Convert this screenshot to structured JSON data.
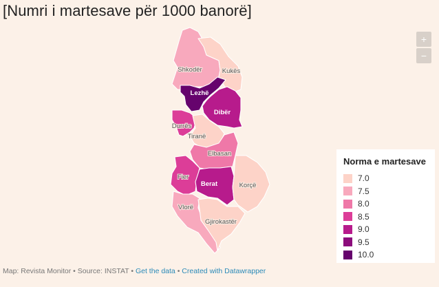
{
  "title": "[Numri i martesave për 1000 banorë]",
  "controls": {
    "zoom_in": "+",
    "zoom_out": "−"
  },
  "legend": {
    "title": "Norma e martesave",
    "items": [
      {
        "value": "7.0",
        "color": "#fdd3c8"
      },
      {
        "value": "7.5",
        "color": "#f8a9bd"
      },
      {
        "value": "8.0",
        "color": "#ef78a8"
      },
      {
        "value": "8.5",
        "color": "#dc3d98"
      },
      {
        "value": "9.0",
        "color": "#b71b8c"
      },
      {
        "value": "9.5",
        "color": "#8c0c7c"
      },
      {
        "value": "10.0",
        "color": "#66036d"
      }
    ]
  },
  "regions": [
    {
      "name": "Shkodër",
      "rate": 7.5
    },
    {
      "name": "Kukës",
      "rate": 7.0
    },
    {
      "name": "Lezhë",
      "rate": 10.0
    },
    {
      "name": "Dibër",
      "rate": 9.0
    },
    {
      "name": "Durrës",
      "rate": 8.5
    },
    {
      "name": "Tiranë",
      "rate": 7.0
    },
    {
      "name": "Elbasan",
      "rate": 8.0
    },
    {
      "name": "Fier",
      "rate": 8.5
    },
    {
      "name": "Berat",
      "rate": 9.0
    },
    {
      "name": "Korçë",
      "rate": 7.0
    },
    {
      "name": "Vlorë",
      "rate": 7.5
    },
    {
      "name": "Gjirokastër",
      "rate": 7.0
    }
  ],
  "footer": {
    "map_credit": "Map: Revista Monitor",
    "separator": "•",
    "source": "Source: INSTAT",
    "get_data": "Get the data",
    "datawrapper": "Created with Datawrapper"
  }
}
